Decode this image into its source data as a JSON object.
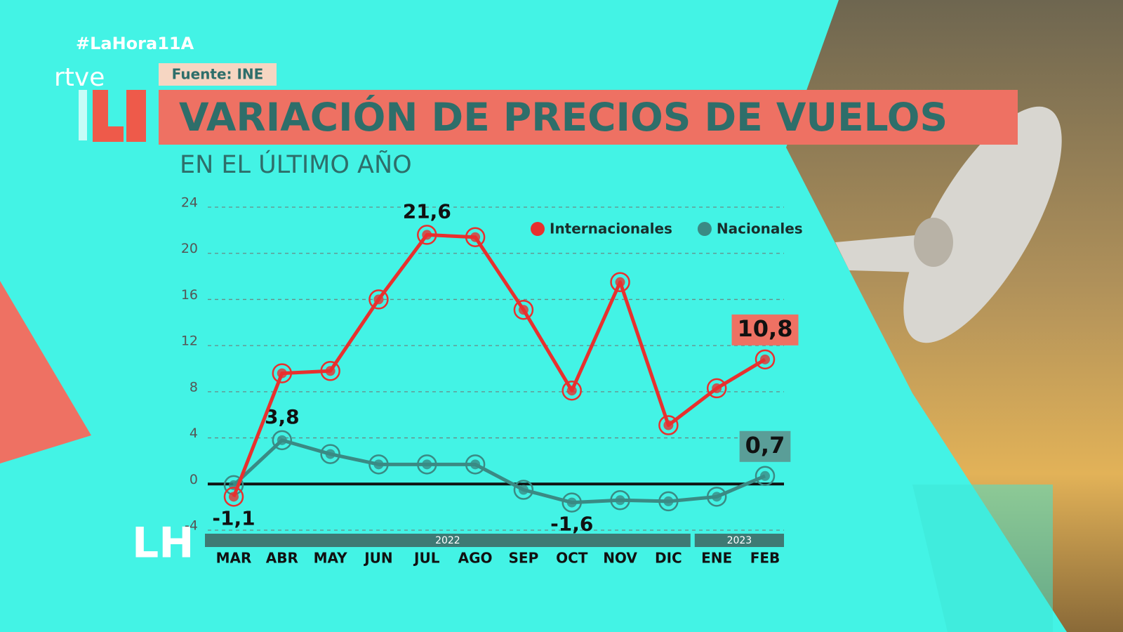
{
  "header": {
    "hashtag": "#LaHora11A",
    "brand": "rtve",
    "source": "Fuente: INE",
    "logo": "LH"
  },
  "chart_data": {
    "type": "line",
    "title": "VARIACIÓN DE PRECIOS DE VUELOS",
    "subtitle": "EN EL ÚLTIMO AÑO",
    "categories": [
      "MAR",
      "ABR",
      "MAY",
      "JUN",
      "JUL",
      "AGO",
      "SEP",
      "OCT",
      "NOV",
      "DIC",
      "ENE",
      "FEB"
    ],
    "years": [
      "2022",
      "2022",
      "2022",
      "2022",
      "2022",
      "2022",
      "2022",
      "2022",
      "2022",
      "2022",
      "2023",
      "2023"
    ],
    "series": [
      {
        "name": "Internacionales",
        "color": "#e8302e",
        "values": [
          -1.1,
          9.6,
          9.8,
          16,
          21.6,
          21.4,
          15.1,
          8.1,
          17.5,
          5.1,
          8.3,
          10.8
        ],
        "value_labels": [
          "-1,1",
          null,
          null,
          null,
          "21,6",
          null,
          null,
          null,
          null,
          null,
          null,
          "10,8"
        ]
      },
      {
        "name": "Nacionales",
        "color": "#3a8a84",
        "values": [
          -0.1,
          3.8,
          2.6,
          1.7,
          1.7,
          1.7,
          -0.5,
          -1.6,
          -1.4,
          -1.5,
          -1.1,
          0.7
        ],
        "value_labels": [
          null,
          "3,8",
          null,
          null,
          null,
          null,
          null,
          "-1,6",
          null,
          null,
          null,
          "0,7"
        ]
      }
    ],
    "ylim": [
      -4,
      24
    ],
    "yticks": [
      -4,
      0,
      4,
      8,
      12,
      16,
      20,
      24
    ],
    "grid": true,
    "legend": "top-right"
  }
}
